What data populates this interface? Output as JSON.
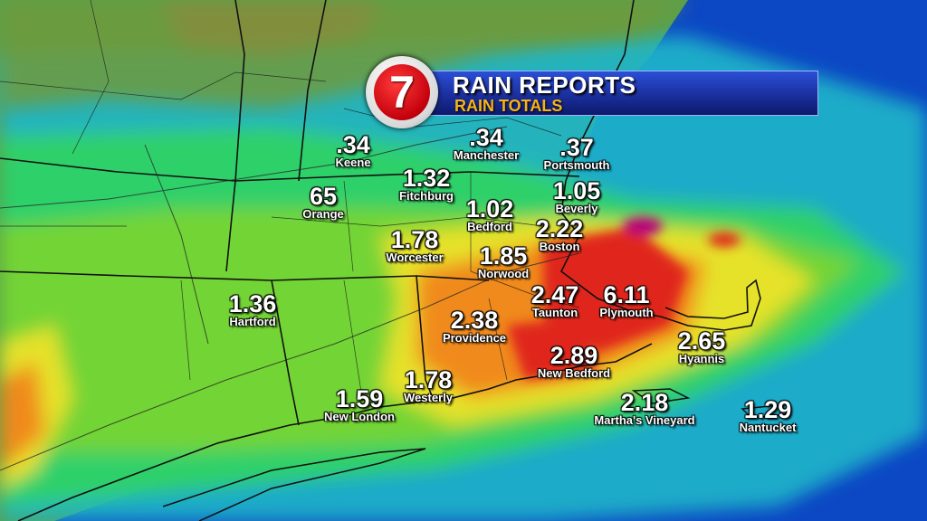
{
  "banner": {
    "logo_text": "7",
    "title": "RAIN REPORTS",
    "subtitle": "RAIN TOTALS",
    "colors": {
      "bar": "#1b2f9e",
      "title": "#ffffff",
      "subtitle": "#f6b21a",
      "logo": "#c4000c"
    }
  },
  "reports": [
    {
      "id": "keene",
      "value": ".34",
      "city": "Keene"
    },
    {
      "id": "manchester",
      "value": ".34",
      "city": "Manchester"
    },
    {
      "id": "portsmouth",
      "value": ".37",
      "city": "Portsmouth"
    },
    {
      "id": "fitchburg",
      "value": "1.32",
      "city": "Fitchburg"
    },
    {
      "id": "orange",
      "value": "65",
      "city": "Orange"
    },
    {
      "id": "bedford",
      "value": "1.02",
      "city": "Bedford"
    },
    {
      "id": "beverly",
      "value": "1.05",
      "city": "Beverly"
    },
    {
      "id": "boston",
      "value": "2.22",
      "city": "Boston"
    },
    {
      "id": "worcester",
      "value": "1.78",
      "city": "Worcester"
    },
    {
      "id": "norwood",
      "value": "1.85",
      "city": "Norwood"
    },
    {
      "id": "hartford",
      "value": "1.36",
      "city": "Hartford"
    },
    {
      "id": "taunton",
      "value": "2.47",
      "city": "Taunton"
    },
    {
      "id": "plymouth",
      "value": "6.11",
      "city": "Plymouth"
    },
    {
      "id": "providence",
      "value": "2.38",
      "city": "Providence"
    },
    {
      "id": "hyannis",
      "value": "2.65",
      "city": "Hyannis"
    },
    {
      "id": "newbedford",
      "value": "2.89",
      "city": "New Bedford"
    },
    {
      "id": "westerly",
      "value": "1.78",
      "city": "Westerly"
    },
    {
      "id": "newlondon",
      "value": "1.59",
      "city": "New London"
    },
    {
      "id": "marthasvineyard",
      "value": "2.18",
      "city": "Martha's Vineyard"
    },
    {
      "id": "nantucket",
      "value": "1.29",
      "city": "Nantucket"
    }
  ],
  "rain_scale_colors": [
    "#1fb6c9",
    "#2fd06a",
    "#7fd52a",
    "#e6e22a",
    "#f08a1c",
    "#e0271c",
    "#b5007a"
  ]
}
